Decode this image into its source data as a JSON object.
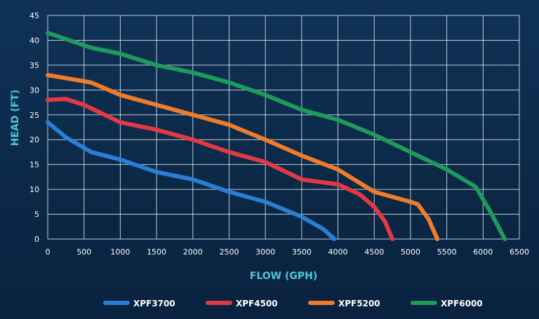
{
  "chart_data": {
    "type": "line",
    "title": "",
    "xlabel": "FLOW (GPH)",
    "ylabel": "HEAD (FT)",
    "xlim": [
      0,
      6500
    ],
    "ylim": [
      0,
      45
    ],
    "x_ticks": [
      0,
      500,
      1000,
      1500,
      2000,
      2500,
      3000,
      3500,
      4000,
      4500,
      5000,
      5500,
      6000,
      6500
    ],
    "y_ticks": [
      0,
      5,
      10,
      15,
      20,
      25,
      30,
      35,
      40,
      45
    ],
    "grid": true,
    "legend_position": "bottom",
    "series": [
      {
        "name": "XPF3700",
        "color": "#2a7fd4",
        "points": [
          [
            0,
            23.5
          ],
          [
            250,
            20.5
          ],
          [
            600,
            17.5
          ],
          [
            1000,
            16
          ],
          [
            1500,
            13.5
          ],
          [
            2000,
            12
          ],
          [
            2500,
            9.5
          ],
          [
            3000,
            7.5
          ],
          [
            3500,
            4.5
          ],
          [
            3800,
            2
          ],
          [
            3950,
            0
          ]
        ]
      },
      {
        "name": "XPF4500",
        "color": "#e23a44",
        "points": [
          [
            0,
            28
          ],
          [
            250,
            28.2
          ],
          [
            500,
            27
          ],
          [
            1000,
            23.5
          ],
          [
            1500,
            22
          ],
          [
            2000,
            20
          ],
          [
            2500,
            17.5
          ],
          [
            3000,
            15.5
          ],
          [
            3500,
            12
          ],
          [
            4000,
            11
          ],
          [
            4300,
            9
          ],
          [
            4500,
            6.5
          ],
          [
            4650,
            3.5
          ],
          [
            4750,
            0
          ]
        ]
      },
      {
        "name": "XPF5200",
        "color": "#f07b2b",
        "points": [
          [
            0,
            33
          ],
          [
            600,
            31.5
          ],
          [
            1000,
            29
          ],
          [
            1500,
            27
          ],
          [
            2000,
            25
          ],
          [
            2500,
            23
          ],
          [
            3000,
            20
          ],
          [
            3500,
            16.8
          ],
          [
            4000,
            14
          ],
          [
            4500,
            9.5
          ],
          [
            5000,
            7.5
          ],
          [
            5100,
            7
          ],
          [
            5250,
            4
          ],
          [
            5370,
            0
          ]
        ]
      },
      {
        "name": "XPF6000",
        "color": "#1e9a5a",
        "points": [
          [
            0,
            41.5
          ],
          [
            600,
            38.5
          ],
          [
            1000,
            37.3
          ],
          [
            1500,
            35
          ],
          [
            2000,
            33.5
          ],
          [
            2500,
            31.5
          ],
          [
            3000,
            29
          ],
          [
            3500,
            26
          ],
          [
            4000,
            24
          ],
          [
            4500,
            21
          ],
          [
            5000,
            17.5
          ],
          [
            5500,
            14
          ],
          [
            5900,
            10.5
          ],
          [
            6100,
            5.5
          ],
          [
            6300,
            0
          ]
        ]
      }
    ]
  }
}
